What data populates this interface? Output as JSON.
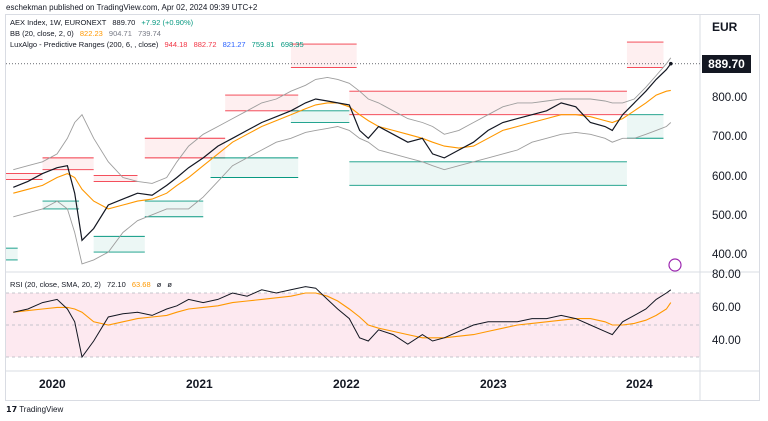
{
  "caption": "eschekman published on TradingView.com, Apr 02, 2024 09:39 UTC+2",
  "legends": {
    "main": {
      "symbol": "AEX Index, 1W, EURONEXT",
      "price": "889.70",
      "change": "+7.92 (+0.90%)"
    },
    "bb": {
      "label": "BB (20, close, 2, 0)",
      "basis": "822.23",
      "upper": "904.71",
      "lower": "739.74"
    },
    "lux": {
      "label": "LuxAlgo - Predictive Ranges (200, 6, , close)",
      "r2": "944.18",
      "r1": "882.72",
      "avg": "821.27",
      "s1": "759.81",
      "s2": "698.35"
    },
    "rsi": {
      "label": "RSI (20, close, SMA, 20, 2)",
      "rsi": "72.10",
      "ma": "63.68",
      "x1": "ø",
      "x2": "ø"
    }
  },
  "price_axis": {
    "currency": "EUR",
    "current": "889.70",
    "ticks": [
      "800.00",
      "700.00",
      "600.00",
      "500.00",
      "400.00",
      "80.00"
    ]
  },
  "rsi_axis": {
    "ticks": [
      "60.00",
      "40.00"
    ]
  },
  "x_axis": {
    "ticks": [
      "2020",
      "2021",
      "2022",
      "2023",
      "2024"
    ]
  },
  "brand": "TradingView",
  "colors": {
    "price": "#131722",
    "bb_basis": "#ff9800",
    "bb_band": "#9e9e9e",
    "resistance": "#f23645",
    "support": "#089981",
    "average": "#2962ff",
    "rsi_bg": "#fce4ec",
    "rsi_ma": "#ff9800"
  },
  "chart_data": [
    {
      "type": "line",
      "title": "AEX Index, 1W, EURONEXT",
      "x": [
        "2019.75",
        "2019.85",
        "2019.95",
        "2020.05",
        "2020.12",
        "2020.17",
        "2020.22",
        "2020.3",
        "2020.4",
        "2020.5",
        "2020.6",
        "2020.7",
        "2020.8",
        "2020.87",
        "2020.95",
        "2021.05",
        "2021.15",
        "2021.25",
        "2021.35",
        "2021.45",
        "2021.55",
        "2021.65",
        "2021.75",
        "2021.82",
        "2021.9",
        "2021.97",
        "2022.05",
        "2022.12",
        "2022.18",
        "2022.25",
        "2022.35",
        "2022.45",
        "2022.55",
        "2022.62",
        "2022.7",
        "2022.8",
        "2022.9",
        "2023.0",
        "2023.1",
        "2023.2",
        "2023.3",
        "2023.4",
        "2023.5",
        "2023.6",
        "2023.7",
        "2023.8",
        "2023.85",
        "2023.92",
        "2024.0",
        "2024.08",
        "2024.15",
        "2024.22",
        "2024.25"
      ],
      "series": [
        {
          "name": "AEX Index",
          "values": [
            575,
            590,
            610,
            625,
            630,
            560,
            440,
            470,
            530,
            545,
            560,
            555,
            580,
            600,
            625,
            650,
            680,
            700,
            720,
            740,
            755,
            770,
            790,
            800,
            795,
            790,
            785,
            720,
            700,
            730,
            710,
            690,
            700,
            660,
            650,
            670,
            690,
            720,
            740,
            750,
            760,
            770,
            790,
            780,
            740,
            730,
            720,
            760,
            790,
            820,
            850,
            875,
            890
          ]
        },
        {
          "name": "BB basis",
          "values": [
            560,
            570,
            580,
            600,
            610,
            600,
            570,
            540,
            520,
            530,
            540,
            545,
            560,
            580,
            600,
            630,
            660,
            690,
            710,
            730,
            745,
            760,
            775,
            785,
            790,
            790,
            780,
            760,
            745,
            730,
            720,
            710,
            700,
            690,
            680,
            675,
            680,
            700,
            720,
            730,
            740,
            750,
            760,
            760,
            755,
            745,
            740,
            750,
            770,
            790,
            810,
            820,
            822
          ]
        },
        {
          "name": "BB upper",
          "values": [
            620,
            630,
            640,
            660,
            700,
            740,
            760,
            700,
            640,
            600,
            590,
            585,
            600,
            640,
            680,
            710,
            730,
            750,
            770,
            790,
            800,
            820,
            835,
            850,
            855,
            850,
            840,
            820,
            800,
            790,
            770,
            750,
            740,
            730,
            710,
            720,
            740,
            760,
            780,
            790,
            790,
            795,
            800,
            800,
            800,
            795,
            790,
            790,
            800,
            830,
            860,
            890,
            905
          ]
        },
        {
          "name": "BB lower",
          "values": [
            500,
            510,
            520,
            540,
            520,
            460,
            380,
            390,
            410,
            460,
            490,
            505,
            520,
            520,
            520,
            550,
            590,
            630,
            650,
            670,
            690,
            700,
            715,
            720,
            725,
            730,
            720,
            700,
            690,
            670,
            660,
            650,
            640,
            630,
            620,
            630,
            640,
            650,
            660,
            670,
            690,
            700,
            710,
            715,
            710,
            700,
            690,
            700,
            700,
            710,
            720,
            730,
            740
          ]
        }
      ],
      "ylim": [
        380,
        960
      ]
    },
    {
      "type": "line",
      "title": "RSI (20, close, SMA, 20, 2)",
      "series": [
        {
          "name": "RSI",
          "values": [
            58,
            60,
            64,
            66,
            60,
            52,
            30,
            40,
            55,
            57,
            58,
            56,
            60,
            62,
            66,
            64,
            66,
            70,
            68,
            72,
            70,
            72,
            74,
            73,
            66,
            60,
            54,
            42,
            40,
            47,
            44,
            38,
            44,
            40,
            42,
            46,
            50,
            52,
            52,
            52,
            54,
            54,
            56,
            54,
            50,
            46,
            44,
            52,
            56,
            60,
            66,
            70,
            72
          ]
        },
        {
          "name": "RSI MA",
          "values": [
            58,
            59,
            60,
            61,
            61,
            60,
            58,
            52,
            50,
            52,
            54,
            55,
            56,
            58,
            60,
            61,
            62,
            64,
            65,
            66,
            67,
            68,
            70,
            70,
            68,
            65,
            60,
            55,
            50,
            48,
            46,
            44,
            42,
            42,
            42,
            43,
            44,
            46,
            48,
            50,
            51,
            52,
            53,
            54,
            54,
            52,
            50,
            50,
            51,
            53,
            56,
            60,
            64
          ]
        }
      ],
      "ylim": [
        25,
        82
      ]
    }
  ]
}
